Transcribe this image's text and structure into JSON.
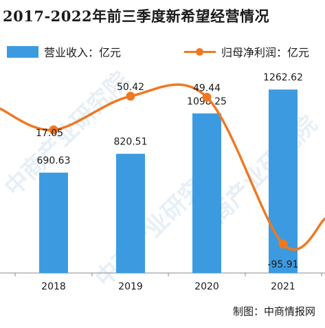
{
  "title": "2017-2022年前三季度新希望经营情况",
  "legend": {
    "bar_label": "营业收入：亿元",
    "line_label": "归母净利润：亿元"
  },
  "source": "制图：中商情报网",
  "watermark": "中商产业研究院",
  "colors": {
    "bar": "#3C9BE0",
    "line": "#F07820",
    "axis": "#888888"
  },
  "chart_data": {
    "type": "bar",
    "categories": [
      "2018",
      "2019",
      "2020",
      "2021"
    ],
    "series": [
      {
        "name": "营业收入：亿元",
        "type": "bar",
        "values": [
          690.63,
          820.51,
          1098.25,
          1262.62
        ],
        "labels": [
          "690.63",
          "820.51",
          "1098.25",
          "1262.62"
        ]
      },
      {
        "name": "归母净利润：亿元",
        "type": "line",
        "values": [
          17.05,
          50.42,
          49.44,
          -95.91
        ],
        "labels": [
          "17.05",
          "50.42",
          "49.44",
          "-95.91"
        ]
      }
    ]
  }
}
